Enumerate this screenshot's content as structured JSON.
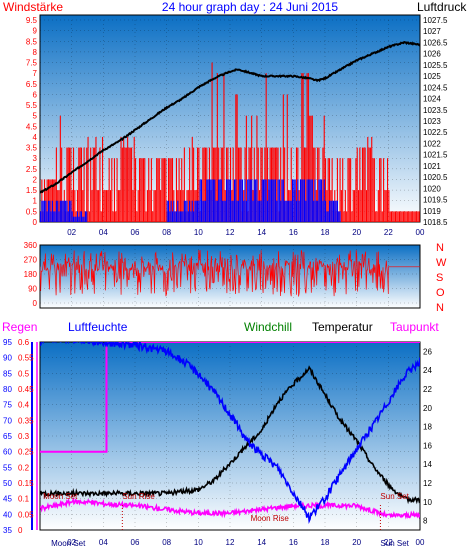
{
  "header": {
    "left": "Windstärke",
    "title": "24 hour graph day : 24 Juni 2015",
    "right": "Luftdruck"
  },
  "colors": {
    "panel_top": "#0b6fc4",
    "panel_bottom": "#ffffff",
    "red": "#ff0000",
    "blue": "#0000ff",
    "magenta": "#ff00ff",
    "black": "#000000",
    "green": "#008000",
    "navy": "#000080"
  },
  "chart_data": [
    {
      "type": "bar",
      "name": "wind-pressure",
      "left_axis": {
        "label": "Windstärke",
        "ticks": [
          "0",
          "0.5",
          "1",
          "1.5",
          "2",
          "2.5",
          "3",
          "3.5",
          "4",
          "4.5",
          "5",
          "5.5",
          "6",
          "6.5",
          "7",
          "7.5",
          "8",
          "8.5",
          "9",
          "9.5"
        ],
        "range": [
          0,
          9.5
        ]
      },
      "right_axis": {
        "label": "Luftdruck",
        "ticks": [
          "1018.5",
          "1019",
          "1019.5",
          "1020",
          "1020.5",
          "1021",
          "1021.5",
          "1022",
          "1022.5",
          "1023",
          "1023.5",
          "1024",
          "1024.5",
          "1025",
          "1025.5",
          "1026",
          "1026.5",
          "1027",
          "1027.5"
        ],
        "range": [
          1018.5,
          1027.5
        ]
      },
      "x_ticks": [
        "02",
        "04",
        "06",
        "08",
        "10",
        "12",
        "14",
        "16",
        "18",
        "20",
        "22",
        "00"
      ],
      "pressure": {
        "hours": [
          0,
          1,
          2,
          3,
          4,
          5,
          6,
          7,
          8,
          9,
          10,
          11,
          12,
          12.5,
          13,
          14,
          15,
          16,
          17,
          17.5,
          18,
          19,
          20,
          21,
          22,
          23,
          24
        ],
        "values": [
          1019.8,
          1020.2,
          1020.7,
          1021.2,
          1021.7,
          1022.1,
          1022.6,
          1023.1,
          1023.6,
          1024.0,
          1024.5,
          1024.9,
          1025.2,
          1025.3,
          1025.2,
          1025.0,
          1025.0,
          1025.0,
          1024.9,
          1024.8,
          1024.9,
          1025.3,
          1025.7,
          1026.0,
          1026.3,
          1026.5,
          1026.4
        ]
      },
      "wind_gust_hourly_max": [
        2,
        5,
        5,
        4,
        3,
        4,
        3,
        3,
        3,
        4,
        7.5,
        7,
        6,
        5,
        7,
        6,
        7,
        5,
        3,
        3,
        4,
        3,
        2,
        2
      ],
      "wind_mean_hourly_max": [
        1,
        1,
        0.5,
        0,
        0,
        0,
        0,
        0,
        1,
        1,
        2,
        2,
        2,
        2,
        2,
        2,
        2,
        2,
        1,
        0,
        0,
        0,
        0,
        0
      ]
    },
    {
      "type": "line",
      "name": "wind-direction",
      "y_ticks": [
        "0",
        "90",
        "180",
        "270",
        "360"
      ],
      "right_labels": [
        "N",
        "W",
        "S",
        "O",
        "N"
      ],
      "range": [
        0,
        360
      ],
      "typical_range": [
        40,
        330
      ],
      "final_value": 225
    },
    {
      "type": "line",
      "name": "humidity-temperature",
      "headers": [
        "Regen",
        "Luftfeuchte",
        "Windchill",
        "Temperatur",
        "Taupunkt"
      ],
      "rain_axis": {
        "ticks": [
          "0",
          "0.05",
          "0.1",
          "0.15",
          "0.2",
          "0.25",
          "0.3",
          "0.35",
          "0.4",
          "0.45",
          "0.5",
          "0.55",
          "0.6"
        ],
        "range": [
          0,
          0.6
        ]
      },
      "humidity_axis": {
        "ticks": [
          "35",
          "40",
          "45",
          "50",
          "55",
          "60",
          "65",
          "70",
          "75",
          "80",
          "85",
          "90",
          "95"
        ],
        "range": [
          35,
          95
        ]
      },
      "temperature_axis": {
        "ticks": [
          "8",
          "10",
          "12",
          "14",
          "16",
          "18",
          "20",
          "22",
          "24",
          "26"
        ],
        "range": [
          7,
          27
        ]
      },
      "x_ticks": [
        "02",
        "04",
        "06",
        "08",
        "10",
        "12",
        "14",
        "16",
        "18",
        "20",
        "22",
        "00"
      ],
      "rain": {
        "hours": [
          0,
          4.2,
          4.2,
          24
        ],
        "values": [
          0.25,
          0.25,
          0.6,
          0.6
        ]
      },
      "humidity": {
        "hours": [
          0,
          1,
          2,
          4,
          6,
          7,
          8,
          9,
          10,
          11,
          12,
          13,
          14,
          15,
          16,
          17,
          18,
          19,
          20,
          21,
          22,
          23,
          24
        ],
        "values": [
          95,
          96,
          96,
          95,
          94,
          93,
          92,
          89,
          85,
          79,
          72,
          64,
          59,
          55,
          47,
          39,
          45,
          53,
          61,
          68,
          76,
          84,
          89
        ]
      },
      "temperature": {
        "hours": [
          0,
          2,
          4,
          6,
          8,
          10,
          11,
          12,
          13,
          14,
          15,
          16,
          17,
          18,
          19,
          20,
          21,
          22,
          23,
          24
        ],
        "values": [
          10.9,
          10.9,
          10.9,
          10.9,
          10.9,
          11.3,
          12.3,
          14.1,
          15.9,
          17.6,
          20.6,
          22.5,
          24.2,
          21.4,
          18.6,
          16.5,
          13.9,
          11.8,
          10.3,
          10.2
        ]
      },
      "dewpoint": {
        "hours": [
          0,
          1,
          2,
          3,
          4,
          6,
          8,
          10,
          12,
          14,
          16,
          18,
          20,
          22,
          24
        ],
        "values": [
          9.3,
          9.6,
          10.0,
          10.0,
          9.8,
          9.6,
          9.2,
          8.8,
          8.8,
          9.2,
          9.6,
          9.6,
          9.6,
          8.5,
          8.6
        ]
      },
      "events": [
        {
          "label": "Moon Set",
          "hour": 0.2,
          "row": "top"
        },
        {
          "label": "Sun Rise",
          "hour": 5.2,
          "row": "top"
        },
        {
          "label": "Sun Set",
          "hour": 21.5,
          "row": "top"
        },
        {
          "label": "Moon Rise",
          "hour": 13.3,
          "row": "mid"
        },
        {
          "label": "Moon Set",
          "hour": 0.7,
          "row": "bottom"
        },
        {
          "label": "Sun Set",
          "hour": 21.5,
          "row": "bottom"
        }
      ]
    }
  ]
}
